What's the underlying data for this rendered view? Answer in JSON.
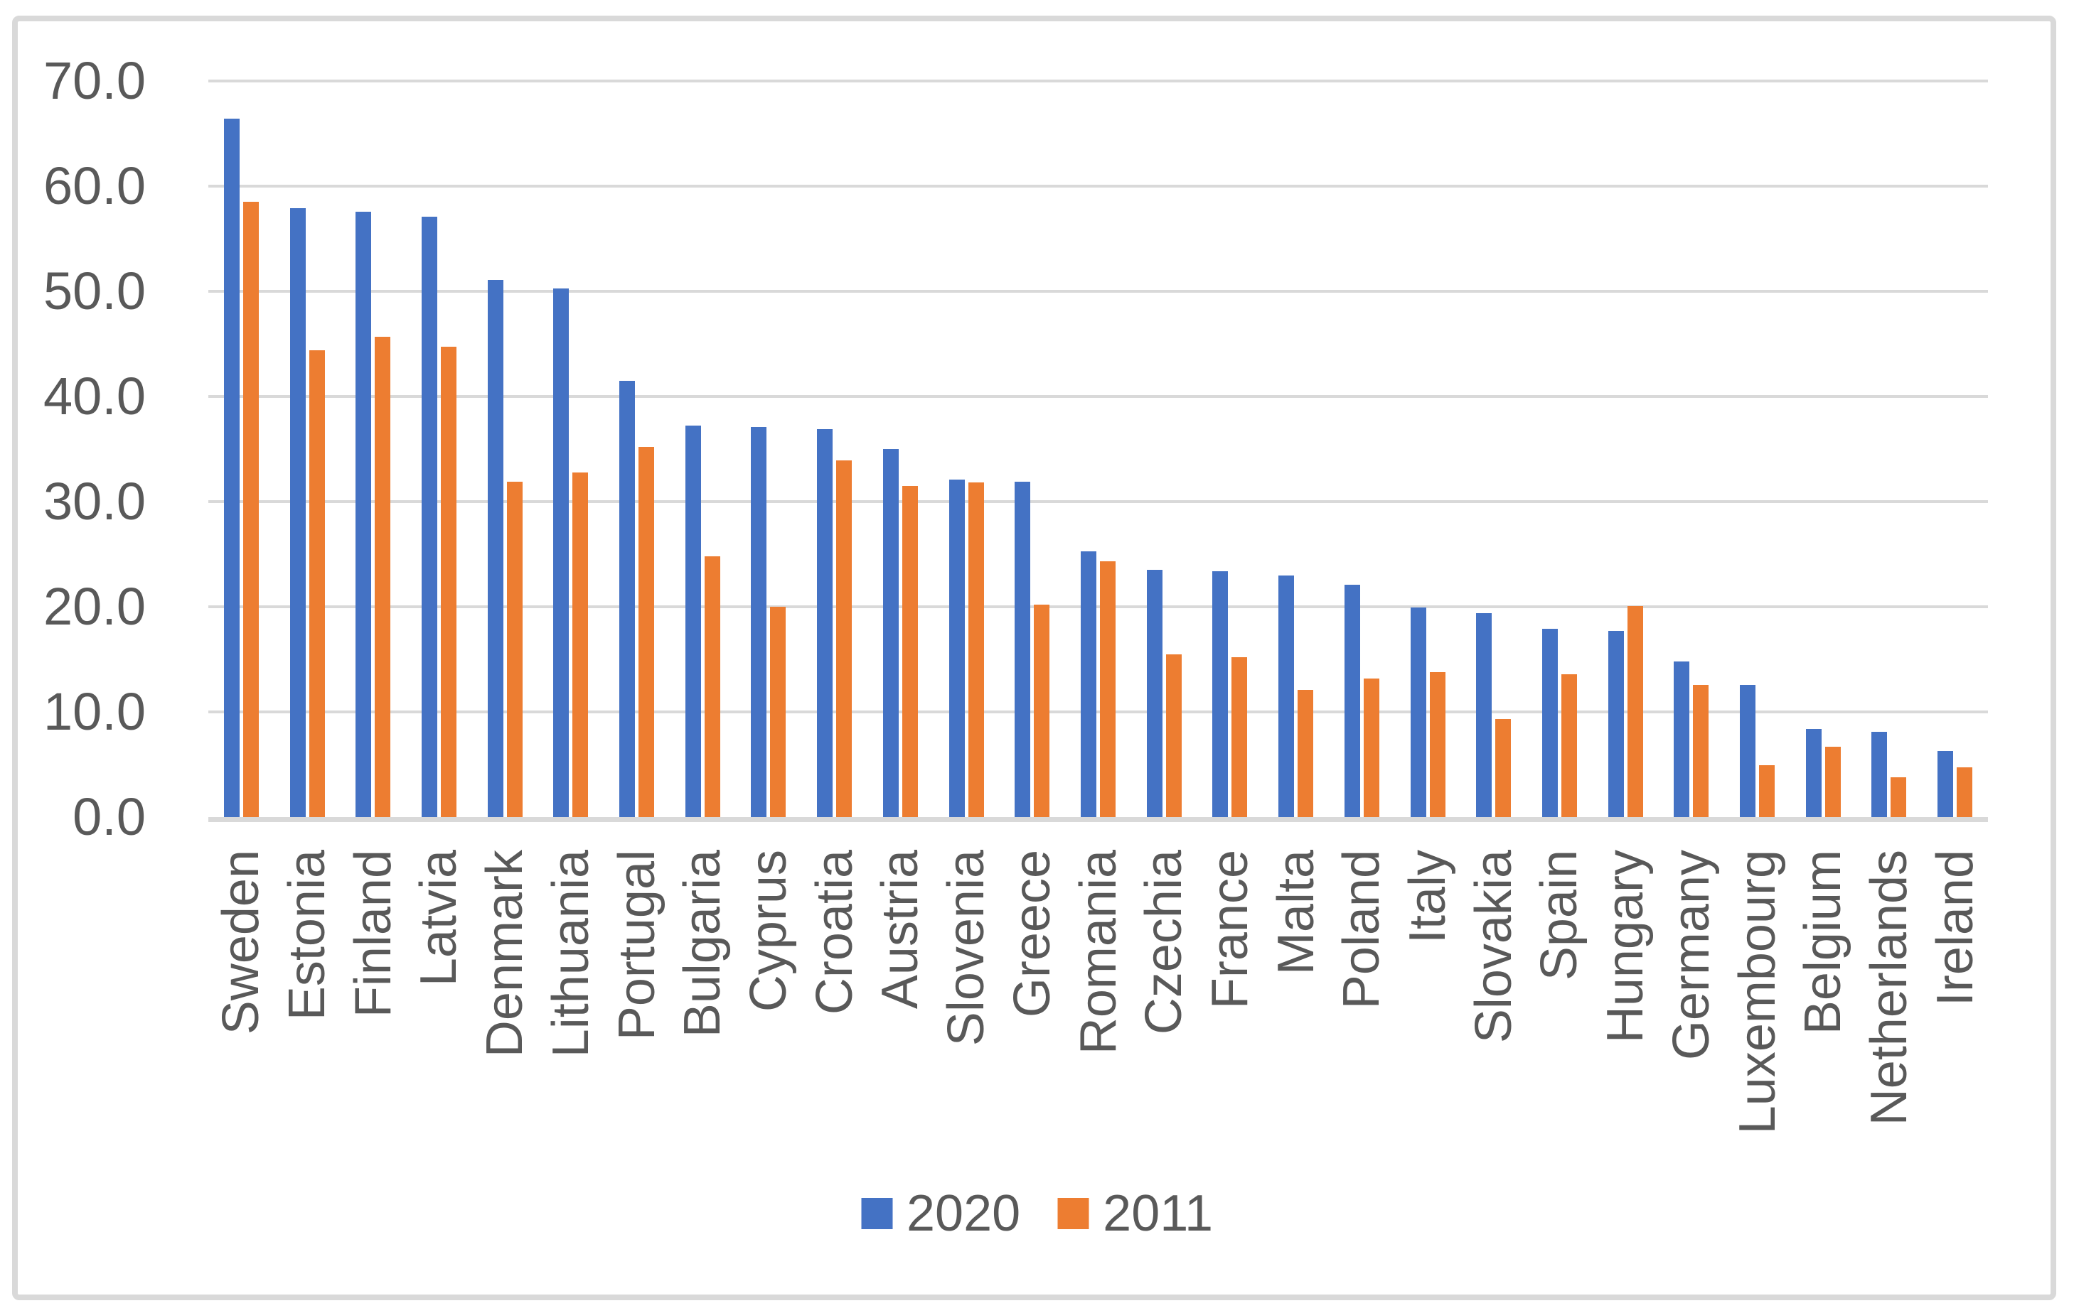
{
  "chart_data": {
    "type": "bar",
    "title": "",
    "xlabel": "",
    "ylabel": "",
    "categories": [
      "Sweden",
      "Estonia",
      "Finland",
      "Latvia",
      "Denmark",
      "Lithuania",
      "Portugal",
      "Bulgaria",
      "Cyprus",
      "Croatia",
      "Austria",
      "Slovenia",
      "Greece",
      "Romania",
      "Czechia",
      "France",
      "Malta",
      "Poland",
      "Italy",
      "Slovakia",
      "Spain",
      "Hungary",
      "Germany",
      "Luxembourg",
      "Belgium",
      "Netherlands",
      "Ireland"
    ],
    "series": [
      {
        "name": "2020",
        "color": "#4472C4",
        "values": [
          66.4,
          57.9,
          57.6,
          57.1,
          51.1,
          50.3,
          41.5,
          37.2,
          37.1,
          36.9,
          35.0,
          32.1,
          31.9,
          25.3,
          23.5,
          23.4,
          23.0,
          22.1,
          19.9,
          19.4,
          17.9,
          17.7,
          14.8,
          12.6,
          8.4,
          8.1,
          6.3
        ]
      },
      {
        "name": "2011",
        "color": "#ED7D31",
        "values": [
          58.5,
          44.4,
          45.7,
          44.7,
          31.9,
          32.8,
          35.2,
          24.8,
          20.0,
          33.9,
          31.5,
          31.8,
          20.2,
          24.3,
          15.5,
          15.2,
          12.1,
          13.2,
          13.8,
          9.3,
          13.6,
          20.1,
          12.6,
          4.9,
          6.7,
          3.8,
          4.7
        ]
      }
    ],
    "ylim": [
      0,
      70
    ],
    "y_tick_step": 10,
    "y_tick_labels": [
      "0.0",
      "10.0",
      "20.0",
      "30.0",
      "40.0",
      "50.0",
      "60.0",
      "70.0"
    ],
    "grid": true,
    "legend_position": "bottom-center"
  },
  "colors": {
    "axis_text": "#595959",
    "gridline": "#D9D9D9",
    "axis_line": "#D9D9D9",
    "border": "#D9D9D9",
    "background": "#FFFFFF"
  }
}
